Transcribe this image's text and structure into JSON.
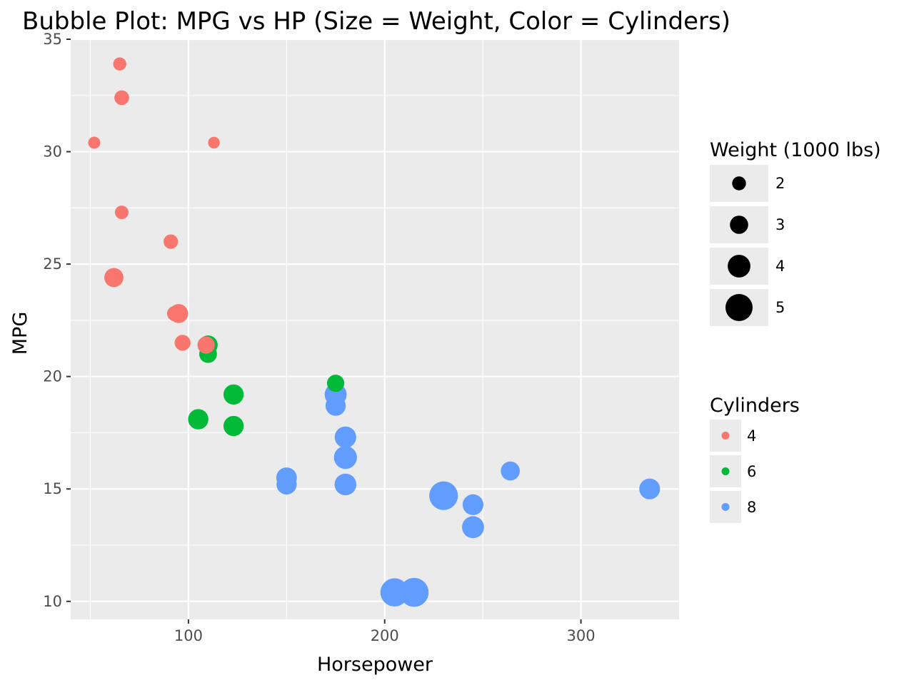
{
  "chart_data": {
    "type": "scatter",
    "title": "Bubble Plot: MPG vs HP (Size = Weight, Color = Cylinders)",
    "xlabel": "Horsepower",
    "ylabel": "MPG",
    "xlim": [
      40,
      350
    ],
    "ylim": [
      9.2,
      35
    ],
    "xticks": [
      100,
      200,
      300
    ],
    "yticks": [
      10,
      15,
      20,
      25,
      30,
      35
    ],
    "x_minor_ticks": [
      50,
      150,
      250
    ],
    "y_minor_ticks": [
      12.5,
      17.5,
      22.5,
      27.5,
      32.5
    ],
    "grid": true,
    "legend_position": "right",
    "size_legend": {
      "title": "Weight (1000 lbs)",
      "entries": [
        {
          "label": "2",
          "value": 2
        },
        {
          "label": "3",
          "value": 3
        },
        {
          "label": "4",
          "value": 4
        },
        {
          "label": "5",
          "value": 5
        }
      ]
    },
    "color_legend": {
      "title": "Cylinders",
      "entries": [
        {
          "label": "4",
          "color": "#F8766D"
        },
        {
          "label": "6",
          "color": "#00BA38"
        },
        {
          "label": "8",
          "color": "#619CFF"
        }
      ]
    },
    "points": [
      {
        "hp": 110,
        "mpg": 21.0,
        "wt": 2.62,
        "cyl": "6"
      },
      {
        "hp": 110,
        "mpg": 21.0,
        "wt": 2.875,
        "cyl": "6"
      },
      {
        "hp": 93,
        "mpg": 22.8,
        "wt": 2.32,
        "cyl": "4"
      },
      {
        "hp": 110,
        "mpg": 21.4,
        "wt": 3.215,
        "cyl": "6"
      },
      {
        "hp": 175,
        "mpg": 18.7,
        "wt": 3.44,
        "cyl": "8"
      },
      {
        "hp": 105,
        "mpg": 18.1,
        "wt": 3.46,
        "cyl": "6"
      },
      {
        "hp": 245,
        "mpg": 14.3,
        "wt": 3.57,
        "cyl": "8"
      },
      {
        "hp": 62,
        "mpg": 24.4,
        "wt": 3.19,
        "cyl": "4"
      },
      {
        "hp": 95,
        "mpg": 22.8,
        "wt": 3.15,
        "cyl": "4"
      },
      {
        "hp": 123,
        "mpg": 19.2,
        "wt": 3.44,
        "cyl": "6"
      },
      {
        "hp": 123,
        "mpg": 17.8,
        "wt": 3.44,
        "cyl": "6"
      },
      {
        "hp": 180,
        "mpg": 16.4,
        "wt": 4.07,
        "cyl": "8"
      },
      {
        "hp": 180,
        "mpg": 17.3,
        "wt": 3.73,
        "cyl": "8"
      },
      {
        "hp": 180,
        "mpg": 15.2,
        "wt": 3.78,
        "cyl": "8"
      },
      {
        "hp": 205,
        "mpg": 10.4,
        "wt": 5.25,
        "cyl": "8"
      },
      {
        "hp": 215,
        "mpg": 10.4,
        "wt": 5.424,
        "cyl": "8"
      },
      {
        "hp": 230,
        "mpg": 14.7,
        "wt": 5.345,
        "cyl": "8"
      },
      {
        "hp": 66,
        "mpg": 32.4,
        "wt": 2.2,
        "cyl": "4"
      },
      {
        "hp": 52,
        "mpg": 30.4,
        "wt": 1.615,
        "cyl": "4"
      },
      {
        "hp": 65,
        "mpg": 33.9,
        "wt": 1.835,
        "cyl": "4"
      },
      {
        "hp": 97,
        "mpg": 21.5,
        "wt": 2.465,
        "cyl": "4"
      },
      {
        "hp": 150,
        "mpg": 15.5,
        "wt": 3.52,
        "cyl": "8"
      },
      {
        "hp": 150,
        "mpg": 15.2,
        "wt": 3.435,
        "cyl": "8"
      },
      {
        "hp": 245,
        "mpg": 13.3,
        "wt": 3.84,
        "cyl": "8"
      },
      {
        "hp": 175,
        "mpg": 19.2,
        "wt": 3.845,
        "cyl": "8"
      },
      {
        "hp": 66,
        "mpg": 27.3,
        "wt": 1.935,
        "cyl": "4"
      },
      {
        "hp": 91,
        "mpg": 26.0,
        "wt": 2.14,
        "cyl": "4"
      },
      {
        "hp": 113,
        "mpg": 30.4,
        "wt": 1.513,
        "cyl": "4"
      },
      {
        "hp": 264,
        "mpg": 15.8,
        "wt": 3.17,
        "cyl": "8"
      },
      {
        "hp": 175,
        "mpg": 19.7,
        "wt": 2.77,
        "cyl": "6"
      },
      {
        "hp": 335,
        "mpg": 15.0,
        "wt": 3.57,
        "cyl": "8"
      },
      {
        "hp": 109,
        "mpg": 21.4,
        "wt": 2.78,
        "cyl": "4"
      }
    ]
  }
}
